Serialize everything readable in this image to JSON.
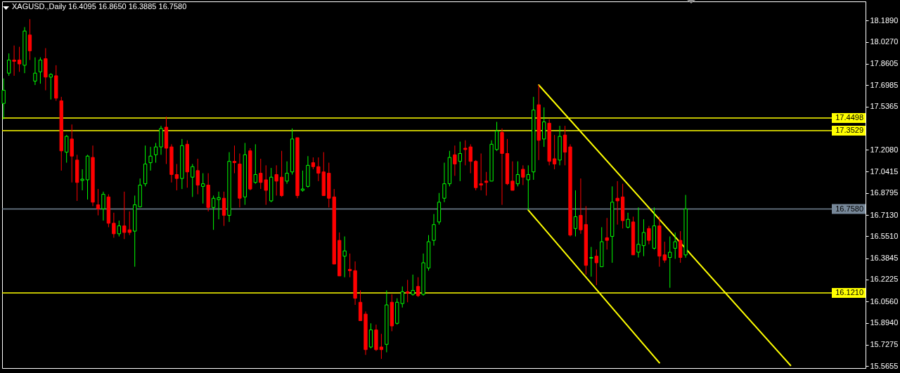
{
  "chart_data": {
    "type": "candlestick",
    "title": "XAGUSD.,Daily 16.4095 16.8650 16.3885 16.7580",
    "categories": [
      null,
      null,
      null,
      null,
      null,
      null,
      null,
      null,
      null,
      null,
      null,
      null,
      null,
      null,
      null,
      null,
      null,
      null,
      null,
      null,
      null,
      null,
      null,
      null,
      null,
      null,
      null,
      null,
      null,
      null,
      null,
      null,
      null,
      null,
      null,
      null,
      null,
      null,
      null,
      null,
      null,
      null,
      null,
      null,
      null,
      null,
      null,
      null,
      null,
      null,
      null,
      null,
      null,
      null,
      null,
      null,
      null,
      null,
      null,
      null,
      null,
      null,
      null,
      null,
      null,
      null,
      null,
      null,
      null,
      null,
      null,
      null,
      null,
      null,
      null,
      null,
      null,
      null,
      null,
      null,
      null,
      null,
      null,
      null,
      null,
      null,
      null,
      null,
      null,
      null,
      null,
      null,
      null,
      null,
      null,
      null,
      null,
      null,
      null,
      null,
      null,
      null,
      null,
      null,
      null,
      null,
      null,
      null,
      null,
      null,
      null,
      null,
      null,
      null,
      null,
      null,
      null,
      null,
      null,
      null,
      null,
      null,
      null,
      null,
      null,
      null,
      null,
      null,
      null,
      null,
      null,
      null,
      null,
      null,
      null,
      null,
      null,
      null,
      null,
      null,
      null,
      null,
      null,
      null,
      null,
      null,
      null,
      null,
      null,
      null,
      null,
      null,
      null,
      null,
      null,
      null,
      null,
      null,
      null,
      null,
      null,
      null,
      null,
      null,
      null
    ],
    "ohlc": [
      [
        17.56,
        17.75,
        17.44,
        17.66
      ],
      [
        17.79,
        17.94,
        17.77,
        17.89
      ],
      [
        17.89,
        18.0,
        17.77,
        17.88
      ],
      [
        17.89,
        17.99,
        17.8,
        17.86
      ],
      [
        17.85,
        18.14,
        17.79,
        18.11
      ],
      [
        18.08,
        18.2,
        17.89,
        17.96
      ],
      [
        17.73,
        17.91,
        17.7,
        17.79
      ],
      [
        17.8,
        17.91,
        17.71,
        17.89
      ],
      [
        17.9,
        17.98,
        17.66,
        17.76
      ],
      [
        17.76,
        17.79,
        17.59,
        17.78
      ],
      [
        17.77,
        17.85,
        17.58,
        17.6
      ],
      [
        17.58,
        17.61,
        17.05,
        17.2
      ],
      [
        17.19,
        17.32,
        17.11,
        17.31
      ],
      [
        17.29,
        17.4,
        16.96,
        17.16
      ],
      [
        17.13,
        17.17,
        16.82,
        16.96
      ],
      [
        16.975,
        17.06,
        16.9,
        16.985
      ],
      [
        16.98,
        17.17,
        16.83,
        17.16
      ],
      [
        17.15,
        17.24,
        16.78,
        16.81
      ],
      [
        16.79,
        16.91,
        16.71,
        16.76
      ],
      [
        16.76,
        16.89,
        16.67,
        16.87
      ],
      [
        16.85,
        16.87,
        16.62,
        16.65
      ],
      [
        16.65,
        16.73,
        16.54,
        16.57
      ],
      [
        16.57,
        16.67,
        16.55,
        16.63
      ],
      [
        16.63,
        16.89,
        16.53,
        16.58
      ],
      [
        16.6,
        16.74,
        16.56,
        16.58
      ],
      [
        16.59,
        16.86,
        16.32,
        16.79
      ],
      [
        16.775,
        16.99,
        16.77,
        16.94
      ],
      [
        16.95,
        17.24,
        16.93,
        17.1
      ],
      [
        17.11,
        17.23,
        17.05,
        17.16
      ],
      [
        17.17,
        17.26,
        17.11,
        17.23
      ],
      [
        17.23,
        17.39,
        17.17,
        17.37
      ],
      [
        17.38,
        17.46,
        17.1,
        17.22
      ],
      [
        17.23,
        17.25,
        16.96,
        17.02
      ],
      [
        17.02,
        17.1,
        16.9,
        16.99
      ],
      [
        16.99,
        17.29,
        16.91,
        17.24
      ],
      [
        17.25,
        17.28,
        16.92,
        17.04
      ],
      [
        17.0,
        17.1,
        16.85,
        17.08
      ],
      [
        17.05,
        17.14,
        16.87,
        16.94
      ],
      [
        16.93,
        17.03,
        16.8,
        16.95
      ],
      [
        16.94,
        17.03,
        16.74,
        16.77
      ],
      [
        16.77,
        16.86,
        16.6,
        16.84
      ],
      [
        16.83,
        16.89,
        16.68,
        16.845
      ],
      [
        16.84,
        16.89,
        16.63,
        16.71
      ],
      [
        16.71,
        17.19,
        16.66,
        17.12
      ],
      [
        17.12,
        17.24,
        17.03,
        17.11
      ],
      [
        17.1,
        17.18,
        16.77,
        16.84
      ],
      [
        16.85,
        17.26,
        16.79,
        17.17
      ],
      [
        17.2,
        17.22,
        16.9,
        16.91
      ],
      [
        16.96,
        17.25,
        16.95,
        17.02
      ],
      [
        17.03,
        17.14,
        16.91,
        16.96
      ],
      [
        16.98,
        17.09,
        16.79,
        16.9
      ],
      [
        16.82,
        17.07,
        16.81,
        17.0
      ],
      [
        17.02,
        17.09,
        16.86,
        16.97
      ],
      [
        17.0,
        17.2,
        16.85,
        16.86
      ],
      [
        16.97,
        17.12,
        16.95,
        17.03
      ],
      [
        17.04,
        17.37,
        17.02,
        17.29
      ],
      [
        17.3,
        17.3,
        16.84,
        16.86
      ],
      [
        16.9,
        17.05,
        16.89,
        16.91
      ],
      [
        16.93,
        17.16,
        16.92,
        17.09
      ],
      [
        17.11,
        17.15,
        17.06,
        17.08
      ],
      [
        17.08,
        17.15,
        16.97,
        17.03
      ],
      [
        17.04,
        17.19,
        16.86,
        16.86
      ],
      [
        17.03,
        17.11,
        16.77,
        16.84
      ],
      [
        16.85,
        16.91,
        16.34,
        16.34
      ],
      [
        16.52,
        16.58,
        16.25,
        16.25
      ],
      [
        16.4,
        16.55,
        16.24,
        16.44
      ],
      [
        16.3,
        16.42,
        16.24,
        16.29
      ],
      [
        16.29,
        16.36,
        16.03,
        16.08
      ],
      [
        16.05,
        16.14,
        15.91,
        15.91
      ],
      [
        15.96,
        15.98,
        15.65,
        15.69
      ],
      [
        15.71,
        15.89,
        15.7,
        15.84
      ],
      [
        15.84,
        15.88,
        15.68,
        15.69
      ],
      [
        15.71,
        15.81,
        15.62,
        15.69
      ],
      [
        15.73,
        16.14,
        15.67,
        16.03
      ],
      [
        16.05,
        16.11,
        15.83,
        15.87
      ],
      [
        15.89,
        16.08,
        15.88,
        16.05
      ],
      [
        16.04,
        16.17,
        16.01,
        16.13
      ],
      [
        16.13,
        16.22,
        16.05,
        16.12
      ],
      [
        16.11,
        16.26,
        16.1,
        16.14
      ],
      [
        16.17,
        16.24,
        16.09,
        16.1
      ],
      [
        16.11,
        16.42,
        16.1,
        16.35
      ],
      [
        16.31,
        16.56,
        16.29,
        16.51
      ],
      [
        16.52,
        16.72,
        16.48,
        16.64
      ],
      [
        16.66,
        16.88,
        16.64,
        16.81
      ],
      [
        16.84,
        17.11,
        16.81,
        16.95
      ],
      [
        16.95,
        17.2,
        16.93,
        17.15
      ],
      [
        17.17,
        17.24,
        17.01,
        17.1
      ],
      [
        17.12,
        17.27,
        16.97,
        17.18
      ],
      [
        17.22,
        17.28,
        17.09,
        17.21
      ],
      [
        17.23,
        17.25,
        17.03,
        17.12
      ],
      [
        17.12,
        17.13,
        16.9,
        16.92
      ],
      [
        16.95,
        17.18,
        16.9,
        16.94
      ],
      [
        16.97,
        17.04,
        16.86,
        16.96
      ],
      [
        16.97,
        17.28,
        16.97,
        17.25
      ],
      [
        17.21,
        17.42,
        17.2,
        17.35
      ],
      [
        17.34,
        17.37,
        16.79,
        17.18
      ],
      [
        17.18,
        17.29,
        16.94,
        16.95
      ],
      [
        16.97,
        17.12,
        16.9,
        16.9
      ],
      [
        16.95,
        17.12,
        16.93,
        17.02
      ],
      [
        17.06,
        17.09,
        16.94,
        17.0
      ],
      [
        16.98,
        17.09,
        16.75,
        17.02
      ],
      [
        17.04,
        17.61,
        16.98,
        17.51
      ],
      [
        17.55,
        17.7,
        17.13,
        17.28
      ],
      [
        17.29,
        17.53,
        17.23,
        17.42
      ],
      [
        17.41,
        17.44,
        17.09,
        17.12
      ],
      [
        17.14,
        17.32,
        17.06,
        17.1
      ],
      [
        17.13,
        17.39,
        17.09,
        17.31
      ],
      [
        17.32,
        17.39,
        17.09,
        17.19
      ],
      [
        17.23,
        17.25,
        16.55,
        16.56
      ],
      [
        16.61,
        16.9,
        16.55,
        16.7
      ],
      [
        16.71,
        16.99,
        16.57,
        16.6
      ],
      [
        16.64,
        16.78,
        16.26,
        16.33
      ],
      [
        16.385,
        16.47,
        16.245,
        16.39
      ],
      [
        16.4,
        16.45,
        16.18,
        16.35
      ],
      [
        16.32,
        16.62,
        16.32,
        16.51
      ],
      [
        16.54,
        16.69,
        16.45,
        16.52
      ],
      [
        16.55,
        16.93,
        16.35,
        16.81
      ],
      [
        16.84,
        16.97,
        16.64,
        16.82
      ],
      [
        16.85,
        16.95,
        16.61,
        16.67
      ],
      [
        16.62,
        16.73,
        16.61,
        16.68
      ],
      [
        16.66,
        16.7,
        16.41,
        16.41
      ],
      [
        16.43,
        16.77,
        16.39,
        16.49
      ],
      [
        16.48,
        16.68,
        16.4,
        16.58
      ],
      [
        16.61,
        16.63,
        16.49,
        16.52
      ],
      [
        16.46,
        16.77,
        16.45,
        16.63
      ],
      [
        16.63,
        16.7,
        16.32,
        16.4
      ],
      [
        16.41,
        16.51,
        16.35,
        16.37
      ],
      [
        16.39,
        16.55,
        16.16,
        16.43
      ],
      [
        16.46,
        16.58,
        16.38,
        16.51
      ],
      [
        16.52,
        16.59,
        16.35,
        16.39
      ],
      [
        16.4095,
        16.865,
        16.3885,
        16.758
      ],
      null,
      null,
      null,
      null,
      null,
      null,
      null,
      null,
      null,
      null,
      null,
      null,
      null,
      null,
      null,
      null,
      null,
      null,
      null,
      null,
      null,
      null,
      null,
      null,
      null,
      null,
      null,
      null,
      null,
      null,
      null,
      null,
      null,
      null
    ],
    "colors": [
      "#00ff00",
      "#00ff00",
      "#ff0000",
      "#ff0000",
      "#00ff00",
      "#ff0000",
      "#00ff00",
      "#00ff00",
      "#ff0000",
      "#00ff00",
      "#ff0000",
      "#ff0000",
      "#00ff00",
      "#ff0000",
      "#ff0000",
      "#00ff00",
      "#00ff00",
      "#ff0000",
      "#ff0000",
      "#00ff00",
      "#ff0000",
      "#ff0000",
      "#00ff00",
      "#ff0000",
      "#ff0000",
      "#00ff00",
      "#00ff00",
      "#00ff00",
      "#00ff00",
      "#00ff00",
      "#00ff00",
      "#ff0000",
      "#ff0000",
      "#ff0000",
      "#00ff00",
      "#ff0000",
      "#00ff00",
      "#ff0000",
      "#00ff00",
      "#ff0000",
      "#00ff00",
      "#00ff00",
      "#ff0000",
      "#00ff00",
      "#ff0000",
      "#ff0000",
      "#00ff00",
      "#ff0000",
      "#00ff00",
      "#ff0000",
      "#ff0000",
      "#00ff00",
      "#ff0000",
      "#ff0000",
      "#00ff00",
      "#00ff00",
      "#ff0000",
      "#00ff00",
      "#00ff00",
      "#ff0000",
      "#ff0000",
      "#ff0000",
      "#ff0000",
      "#ff0000",
      "#ff0000",
      "#00ff00",
      "#ff0000",
      "#ff0000",
      "#ff0000",
      "#ff0000",
      "#00ff00",
      "#ff0000",
      "#ff0000",
      "#00ff00",
      "#ff0000",
      "#00ff00",
      "#00ff00",
      "#ff0000",
      "#00ff00",
      "#ff0000",
      "#00ff00",
      "#00ff00",
      "#00ff00",
      "#00ff00",
      "#00ff00",
      "#00ff00",
      "#ff0000",
      "#00ff00",
      "#ff0000",
      "#ff0000",
      "#ff0000",
      "#ff0000",
      "#ff0000",
      "#00ff00",
      "#00ff00",
      "#ff0000",
      "#ff0000",
      "#ff0000",
      "#00ff00",
      "#ff0000",
      "#00ff00",
      "#00ff00",
      "#ff0000",
      "#00ff00",
      "#ff0000",
      "#ff0000",
      "#00ff00",
      "#ff0000",
      "#ff0000",
      "#00ff00",
      "#ff0000",
      "#ff0000",
      "#00ff00",
      "#ff0000",
      "#00ff00",
      "#ff0000",
      "#00ff00",
      "#ff0000",
      "#ff0000",
      "#00ff00",
      "#ff0000",
      "#00ff00",
      "#00ff00",
      "#ff0000",
      "#00ff00",
      "#ff0000",
      "#ff0000",
      "#00ff00",
      "#00ff00",
      "#ff0000",
      "#00ff00",
      null,
      null,
      null,
      null,
      null,
      null,
      null,
      null,
      null,
      null,
      null,
      null,
      null,
      null,
      null,
      null,
      null,
      null,
      null,
      null,
      null,
      null,
      null,
      null,
      null,
      null,
      null,
      null,
      null,
      null,
      null,
      null,
      null,
      null
    ],
    "series": [
      {
        "type": "line",
        "color": "#ffff00",
        "values": [
          null,
          null,
          null,
          null,
          null,
          null,
          null,
          null,
          null,
          null,
          null,
          null,
          null,
          null,
          null,
          null,
          null,
          null,
          null,
          null,
          null,
          null,
          null,
          null,
          null,
          null,
          null,
          null,
          null,
          null,
          null,
          null,
          null,
          null,
          null,
          null,
          null,
          null,
          null,
          null,
          null,
          null,
          null,
          null,
          null,
          null,
          null,
          null,
          null,
          null,
          null,
          null,
          null,
          null,
          null,
          null,
          null,
          null,
          null,
          null,
          null,
          null,
          null,
          null,
          null,
          null,
          null,
          null,
          null,
          null,
          null,
          null,
          null,
          null,
          null,
          null,
          null,
          null,
          null,
          null,
          null,
          null,
          null,
          null,
          null,
          null,
          null,
          null,
          null,
          null,
          null,
          null,
          null,
          null,
          null,
          null,
          null,
          null,
          null,
          null,
          null,
          null,
          17.7,
          null,
          null,
          null,
          null,
          null,
          null,
          null,
          null,
          null,
          null,
          null,
          null,
          null,
          null,
          null,
          null,
          null,
          null,
          null,
          null,
          null,
          null,
          null,
          null,
          null,
          null,
          null,
          null,
          null,
          null,
          null,
          null,
          null,
          null,
          null,
          null,
          null,
          null,
          null,
          null,
          null,
          null,
          null,
          null,
          null,
          null,
          null,
          15.57,
          null,
          null,
          null,
          null,
          null,
          null,
          null,
          null,
          null,
          null,
          null,
          null,
          null,
          null
        ]
      },
      {
        "type": "line",
        "color": "#ffff00",
        "values": [
          null,
          null,
          null,
          null,
          null,
          null,
          null,
          null,
          null,
          null,
          null,
          null,
          null,
          null,
          null,
          null,
          null,
          null,
          null,
          null,
          null,
          null,
          null,
          null,
          null,
          null,
          null,
          null,
          null,
          null,
          null,
          null,
          null,
          null,
          null,
          null,
          null,
          null,
          null,
          null,
          null,
          null,
          null,
          null,
          null,
          null,
          null,
          null,
          null,
          null,
          null,
          null,
          null,
          null,
          null,
          null,
          null,
          null,
          null,
          null,
          null,
          null,
          null,
          null,
          null,
          null,
          null,
          null,
          null,
          null,
          null,
          null,
          null,
          null,
          null,
          null,
          null,
          null,
          null,
          null,
          null,
          null,
          null,
          null,
          null,
          null,
          null,
          null,
          null,
          null,
          null,
          null,
          null,
          null,
          null,
          null,
          null,
          null,
          null,
          null,
          16.75,
          null,
          null,
          null,
          null,
          null,
          null,
          null,
          null,
          null,
          null,
          null,
          null,
          null,
          null,
          null,
          null,
          null,
          null,
          null,
          null,
          null,
          null,
          null,
          null,
          15.59,
          null,
          null,
          null,
          null,
          null,
          null,
          null,
          null,
          null,
          null,
          null,
          null,
          null,
          null,
          null,
          null,
          null,
          null,
          null,
          null,
          null,
          null,
          null,
          null,
          null,
          null,
          null,
          null,
          null,
          null,
          null,
          null,
          null,
          null,
          null,
          null,
          null,
          null,
          null
        ]
      }
    ],
    "ylim": [
      15.55,
      18.335
    ],
    "yticks": [
      {
        "value": 18.189,
        "label": "18.1890"
      },
      {
        "value": 18.027,
        "label": "18.0270"
      },
      {
        "value": 17.8605,
        "label": "17.8605"
      },
      {
        "value": 17.6985,
        "label": "17.6985"
      },
      {
        "value": 17.5365,
        "label": "17.5365"
      },
      {
        "value": 17.208,
        "label": "17.2080"
      },
      {
        "value": 17.0415,
        "label": "17.0415"
      },
      {
        "value": 16.8795,
        "label": "16.8795"
      },
      {
        "value": 16.713,
        "label": "16.7130"
      },
      {
        "value": 16.551,
        "label": "16.5510"
      },
      {
        "value": 16.3845,
        "label": "16.3845"
      },
      {
        "value": 16.2225,
        "label": "16.2225"
      },
      {
        "value": 16.056,
        "label": "16.0560"
      },
      {
        "value": 15.894,
        "label": "15.8940"
      },
      {
        "value": 15.7275,
        "label": "15.7275"
      },
      {
        "value": 15.5655,
        "label": "15.5655"
      }
    ],
    "ref_lines": [
      {
        "axis": "y",
        "value": 17.4498,
        "label": "17.4498",
        "color": "#ffff00"
      },
      {
        "axis": "y",
        "value": 17.3529,
        "label": "17.3529",
        "color": "#ffff00"
      },
      {
        "axis": "y",
        "value": 16.758,
        "label": "16.7580",
        "color": "#778899"
      },
      {
        "axis": "y",
        "value": 16.121,
        "label": "16.1210",
        "color": "#ffff00"
      }
    ]
  }
}
